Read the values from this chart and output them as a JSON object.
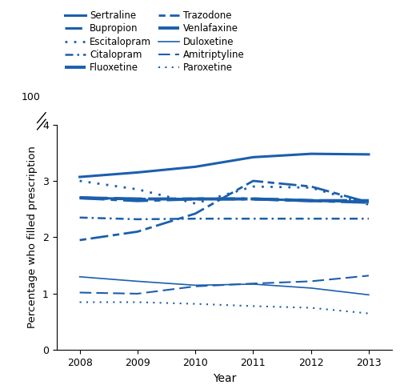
{
  "years": [
    2008,
    2009,
    2010,
    2011,
    2012,
    2013
  ],
  "series": {
    "Sertraline": [
      3.07,
      3.15,
      3.25,
      3.42,
      3.48,
      3.47
    ],
    "Bupropion": [
      2.7,
      2.68,
      2.68,
      2.68,
      2.65,
      2.63
    ],
    "Escitalopram": [
      3.0,
      2.85,
      2.6,
      2.9,
      2.88,
      2.58
    ],
    "Citalopram": [
      2.35,
      2.32,
      2.33,
      2.33,
      2.33,
      2.33
    ],
    "Fluoxetine": [
      2.7,
      2.65,
      2.68,
      2.68,
      2.65,
      2.62
    ],
    "Trazodone": [
      1.95,
      2.1,
      2.42,
      3.0,
      2.9,
      2.62
    ],
    "Venlafaxine": [
      2.7,
      2.68,
      2.68,
      2.68,
      2.65,
      2.65
    ],
    "Duloxetine": [
      1.3,
      1.22,
      1.15,
      1.17,
      1.1,
      0.98
    ],
    "Amitriptyline": [
      1.02,
      1.0,
      1.13,
      1.18,
      1.22,
      1.32
    ],
    "Paroxetine": [
      0.85,
      0.85,
      0.82,
      0.78,
      0.75,
      0.65
    ]
  },
  "color": "#1b5fad",
  "xlabel": "Year",
  "ylabel": "Percentage who filled prescription",
  "ylim": [
    0,
    4.0
  ],
  "yticks": [
    0,
    1,
    2,
    3,
    4
  ],
  "ytick_labels": [
    "0",
    "1",
    "2",
    "3",
    "4"
  ],
  "xlim": [
    2007.6,
    2013.4
  ],
  "xticks": [
    2008,
    2009,
    2010,
    2011,
    2012,
    2013
  ],
  "legend_col1": [
    "Sertraline",
    "Bupropion",
    "Escitalopram",
    "Citalopram",
    "Fluoxetine"
  ],
  "legend_col2": [
    "Trazodone",
    "Venlafaxine",
    "Duloxetine",
    "Amitriptyline",
    "Paroxetine"
  ]
}
